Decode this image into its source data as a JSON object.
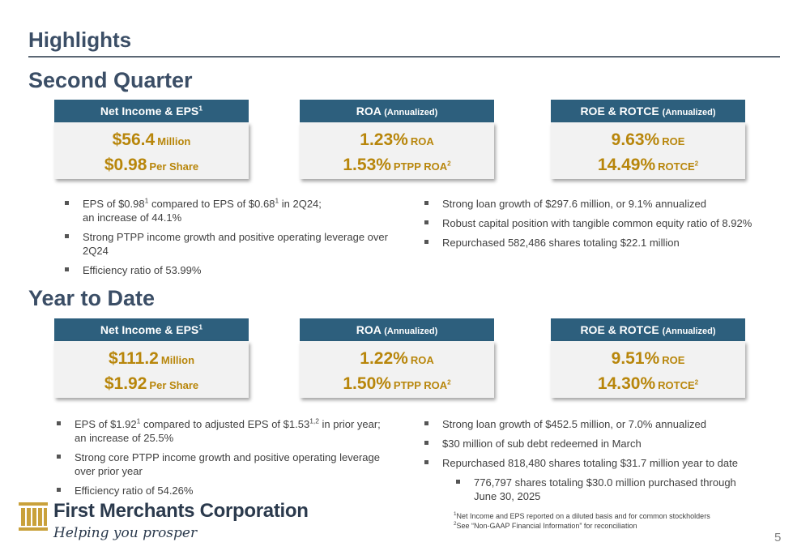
{
  "title": "Highlights",
  "q2": {
    "heading": "Second Quarter",
    "cards": [
      {
        "header_main": "Net Income & EPS",
        "header_sup": "1",
        "header_small": "",
        "line1_value": "$56.4",
        "line1_unit": "Million",
        "line1_sup": "",
        "line2_value": "$0.98",
        "line2_unit": "Per Share",
        "line2_sup": ""
      },
      {
        "header_main": "ROA",
        "header_sup": "",
        "header_small": "(Annualized)",
        "line1_value": "1.23%",
        "line1_unit": "ROA",
        "line1_sup": "",
        "line2_value": "1.53%",
        "line2_unit": "PTPP ROA",
        "line2_sup": "2"
      },
      {
        "header_main": "ROE & ROTCE",
        "header_sup": "",
        "header_small": "(Annualized)",
        "line1_value": "9.63%",
        "line1_unit": "ROE",
        "line1_sup": "",
        "line2_value": "14.49%",
        "line2_unit": "ROTCE",
        "line2_sup": "2"
      }
    ],
    "bullets_left": [
      {
        "pre": "EPS of $0.98",
        "sup1": "1",
        "mid": " compared to EPS of $0.68",
        "sup2": "1",
        "post": " in 2Q24;",
        "line2": "an increase of 44.1%"
      },
      {
        "pre": "Strong PTPP income growth and positive operating leverage over",
        "line2": "2Q24"
      },
      {
        "pre": "Efficiency ratio of 53.99%"
      }
    ],
    "bullets_right": [
      "Strong loan growth of $297.6 million, or 9.1% annualized",
      "Robust capital position with tangible common equity ratio of 8.92%",
      "Repurchased 582,486 shares totaling $22.1 million"
    ]
  },
  "ytd": {
    "heading": "Year to Date",
    "cards": [
      {
        "header_main": "Net Income & EPS",
        "header_sup": "1",
        "header_small": "",
        "line1_value": "$111.2",
        "line1_unit": "Million",
        "line1_sup": "",
        "line2_value": "$1.92",
        "line2_unit": "Per Share",
        "line2_sup": ""
      },
      {
        "header_main": "ROA",
        "header_sup": "",
        "header_small": "(Annualized)",
        "line1_value": "1.22%",
        "line1_unit": "ROA",
        "line1_sup": "",
        "line2_value": "1.50%",
        "line2_unit": "PTPP ROA",
        "line2_sup": "2"
      },
      {
        "header_main": "ROE & ROTCE",
        "header_sup": "",
        "header_small": "(Annualized)",
        "line1_value": "9.51%",
        "line1_unit": "ROE",
        "line1_sup": "",
        "line2_value": "14.30%",
        "line2_unit": "ROTCE",
        "line2_sup": "2"
      }
    ],
    "bullets_left": [
      {
        "pre": "EPS of $1.92",
        "sup1": "1",
        "mid": " compared to adjusted EPS of $1.53",
        "sup2": "1,2",
        "post": " in prior year;",
        "line2": "an increase of 25.5%"
      },
      {
        "pre": "Strong core PTPP income growth and positive operating leverage",
        "line2": "over prior year"
      },
      {
        "pre": "Efficiency ratio of 54.26%"
      }
    ],
    "bullets_right": [
      {
        "text": "Strong loan growth of $452.5 million, or 7.0% annualized"
      },
      {
        "text": "$30 million of sub debt redeemed in March"
      },
      {
        "text": "Repurchased 818,480 shares totaling $31.7 million year to date"
      },
      {
        "text": "776,797 shares totaling $30.0 million purchased through",
        "line2": "June 30, 2025"
      }
    ]
  },
  "logo": {
    "name": "First Merchants Corporation",
    "tagline": "Helping you prosper",
    "icon": "building-columns-icon",
    "color": "#c9a13b"
  },
  "footnotes": [
    {
      "sup": "1",
      "text": "Net Income and EPS reported on a diluted basis and for common stockholders"
    },
    {
      "sup": "2",
      "text": "See “Non-GAAP Financial Information” for reconciliation"
    }
  ],
  "page_number": "5",
  "colors": {
    "header_bar": "#2d5f7d",
    "value_gold": "#b8860b",
    "title_navy": "#3b4e66"
  }
}
